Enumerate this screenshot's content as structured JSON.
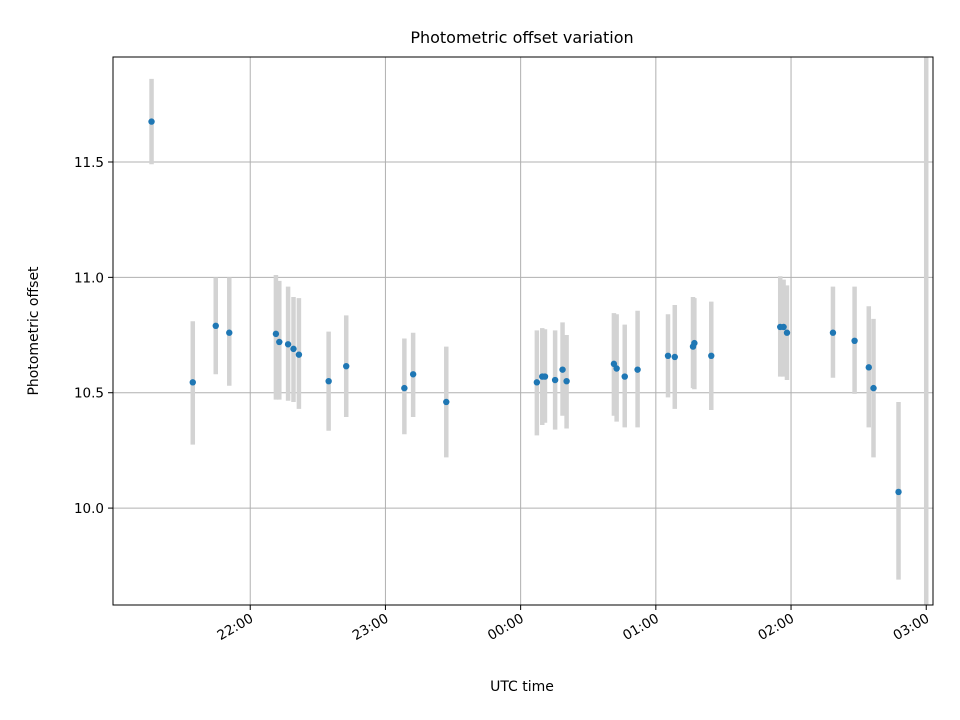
{
  "chart_data": {
    "type": "scatter",
    "title": "Photometric offset variation",
    "xlabel": "UTC time",
    "ylabel": "Photometric offset",
    "xlim_hours": [
      20.985,
      27.05
    ],
    "ylim": [
      9.58,
      11.955
    ],
    "x_ticks": [
      {
        "hour": 22,
        "label": "22:00"
      },
      {
        "hour": 23,
        "label": "23:00"
      },
      {
        "hour": 24,
        "label": "00:00"
      },
      {
        "hour": 25,
        "label": "01:00"
      },
      {
        "hour": 26,
        "label": "02:00"
      },
      {
        "hour": 27,
        "label": "03:00"
      }
    ],
    "y_ticks": [
      {
        "value": 10.0,
        "label": "10.0"
      },
      {
        "value": 10.5,
        "label": "10.5"
      },
      {
        "value": 11.0,
        "label": "11.0"
      },
      {
        "value": 11.5,
        "label": "11.5"
      }
    ],
    "grid": true,
    "point_color": "#1f77b4",
    "errorbar_color": "#d3d3d3",
    "points": [
      {
        "t": 21.27,
        "y": 11.675,
        "lo": 11.49,
        "hi": 11.86
      },
      {
        "t": 21.575,
        "y": 10.545,
        "lo": 10.275,
        "hi": 10.81
      },
      {
        "t": 21.745,
        "y": 10.79,
        "lo": 10.58,
        "hi": 11.0
      },
      {
        "t": 21.845,
        "y": 10.76,
        "lo": 10.53,
        "hi": 11.0
      },
      {
        "t": 22.19,
        "y": 10.755,
        "lo": 10.47,
        "hi": 11.01
      },
      {
        "t": 22.215,
        "y": 10.72,
        "lo": 10.47,
        "hi": 10.985
      },
      {
        "t": 22.28,
        "y": 10.71,
        "lo": 10.465,
        "hi": 10.96
      },
      {
        "t": 22.32,
        "y": 10.69,
        "lo": 10.46,
        "hi": 10.915
      },
      {
        "t": 22.36,
        "y": 10.665,
        "lo": 10.43,
        "hi": 10.91
      },
      {
        "t": 22.58,
        "y": 10.55,
        "lo": 10.335,
        "hi": 10.765
      },
      {
        "t": 22.71,
        "y": 10.615,
        "lo": 10.395,
        "hi": 10.835
      },
      {
        "t": 23.14,
        "y": 10.52,
        "lo": 10.32,
        "hi": 10.735
      },
      {
        "t": 23.205,
        "y": 10.58,
        "lo": 10.395,
        "hi": 10.76
      },
      {
        "t": 23.45,
        "y": 10.46,
        "lo": 10.22,
        "hi": 10.7
      },
      {
        "t": 24.12,
        "y": 10.545,
        "lo": 10.315,
        "hi": 10.77
      },
      {
        "t": 24.16,
        "y": 10.57,
        "lo": 10.36,
        "hi": 10.78
      },
      {
        "t": 24.18,
        "y": 10.57,
        "lo": 10.37,
        "hi": 10.775
      },
      {
        "t": 24.255,
        "y": 10.555,
        "lo": 10.34,
        "hi": 10.77
      },
      {
        "t": 24.31,
        "y": 10.6,
        "lo": 10.4,
        "hi": 10.805
      },
      {
        "t": 24.34,
        "y": 10.55,
        "lo": 10.345,
        "hi": 10.75
      },
      {
        "t": 24.69,
        "y": 10.625,
        "lo": 10.4,
        "hi": 10.845
      },
      {
        "t": 24.71,
        "y": 10.605,
        "lo": 10.375,
        "hi": 10.84
      },
      {
        "t": 24.77,
        "y": 10.57,
        "lo": 10.35,
        "hi": 10.795
      },
      {
        "t": 24.865,
        "y": 10.6,
        "lo": 10.35,
        "hi": 10.855
      },
      {
        "t": 25.09,
        "y": 10.66,
        "lo": 10.48,
        "hi": 10.84
      },
      {
        "t": 25.14,
        "y": 10.655,
        "lo": 10.43,
        "hi": 10.88
      },
      {
        "t": 25.275,
        "y": 10.7,
        "lo": 10.52,
        "hi": 10.915
      },
      {
        "t": 25.285,
        "y": 10.715,
        "lo": 10.515,
        "hi": 10.91
      },
      {
        "t": 25.41,
        "y": 10.66,
        "lo": 10.425,
        "hi": 10.895
      },
      {
        "t": 25.92,
        "y": 10.785,
        "lo": 10.57,
        "hi": 11.005
      },
      {
        "t": 25.945,
        "y": 10.785,
        "lo": 10.57,
        "hi": 10.99
      },
      {
        "t": 25.97,
        "y": 10.76,
        "lo": 10.555,
        "hi": 10.965
      },
      {
        "t": 26.31,
        "y": 10.76,
        "lo": 10.565,
        "hi": 10.96
      },
      {
        "t": 26.47,
        "y": 10.725,
        "lo": 10.495,
        "hi": 10.96
      },
      {
        "t": 26.575,
        "y": 10.61,
        "lo": 10.35,
        "hi": 10.875
      },
      {
        "t": 26.61,
        "y": 10.52,
        "lo": 10.22,
        "hi": 10.82
      },
      {
        "t": 26.795,
        "y": 10.07,
        "lo": 9.69,
        "hi": 10.46
      },
      {
        "t": 27.0,
        "y": 11.955,
        "lo": 9.58,
        "hi": 11.955,
        "marker": false
      }
    ]
  }
}
